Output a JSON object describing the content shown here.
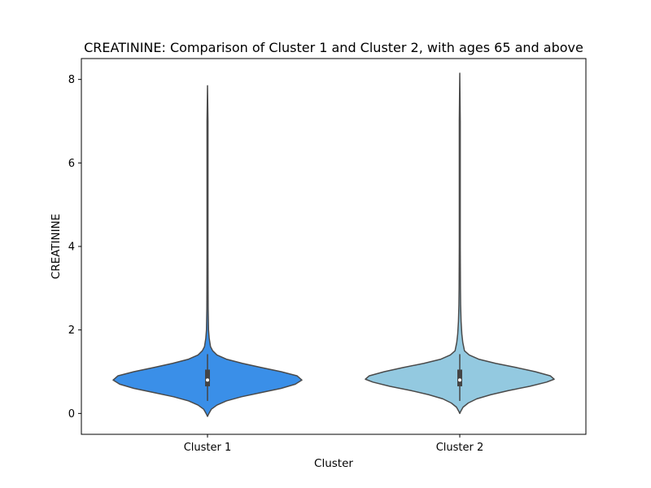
{
  "chart_data": {
    "type": "violin",
    "title": "CREATININE: Comparison of Cluster 1 and Cluster 2, with ages 65 and above",
    "xlabel": "Cluster",
    "ylabel": "CREATININE",
    "ylim": [
      -0.5,
      8.5
    ],
    "yticks": [
      0,
      2,
      4,
      6,
      8
    ],
    "categories": [
      "Cluster 1",
      "Cluster 2"
    ],
    "grid": false,
    "legend": "none",
    "series": [
      {
        "category": "Cluster 1",
        "color": "#3a8fe8",
        "range": [
          -0.07,
          7.85
        ],
        "median": 0.8,
        "q1": 0.65,
        "q3": 1.05,
        "whisker_low": 0.3,
        "whisker_high": 1.42,
        "density": [
          [
            -0.07,
            0.0
          ],
          [
            0.0,
            0.015
          ],
          [
            0.1,
            0.04
          ],
          [
            0.2,
            0.1
          ],
          [
            0.3,
            0.2
          ],
          [
            0.4,
            0.36
          ],
          [
            0.5,
            0.57
          ],
          [
            0.6,
            0.78
          ],
          [
            0.7,
            0.93
          ],
          [
            0.8,
            1.0
          ],
          [
            0.9,
            0.95
          ],
          [
            1.0,
            0.78
          ],
          [
            1.1,
            0.57
          ],
          [
            1.2,
            0.37
          ],
          [
            1.3,
            0.2
          ],
          [
            1.4,
            0.1
          ],
          [
            1.5,
            0.055
          ],
          [
            1.6,
            0.032
          ],
          [
            1.8,
            0.018
          ],
          [
            2.0,
            0.011
          ],
          [
            2.5,
            0.007
          ],
          [
            3.0,
            0.006
          ],
          [
            4.0,
            0.005
          ],
          [
            5.0,
            0.005
          ],
          [
            6.0,
            0.005
          ],
          [
            7.0,
            0.005
          ],
          [
            7.85,
            0.0
          ]
        ]
      },
      {
        "category": "Cluster 2",
        "color": "#93c9e0",
        "range": [
          0.0,
          8.15
        ],
        "median": 0.8,
        "q1": 0.65,
        "q3": 1.05,
        "whisker_low": 0.3,
        "whisker_high": 1.42,
        "density": [
          [
            0.0,
            0.0
          ],
          [
            0.05,
            0.01
          ],
          [
            0.15,
            0.035
          ],
          [
            0.25,
            0.09
          ],
          [
            0.35,
            0.18
          ],
          [
            0.45,
            0.33
          ],
          [
            0.55,
            0.52
          ],
          [
            0.65,
            0.74
          ],
          [
            0.75,
            0.92
          ],
          [
            0.82,
            1.0
          ],
          [
            0.9,
            0.96
          ],
          [
            1.0,
            0.8
          ],
          [
            1.1,
            0.6
          ],
          [
            1.2,
            0.38
          ],
          [
            1.3,
            0.2
          ],
          [
            1.4,
            0.1
          ],
          [
            1.5,
            0.05
          ],
          [
            1.7,
            0.032
          ],
          [
            1.9,
            0.022
          ],
          [
            2.2,
            0.014
          ],
          [
            2.6,
            0.009
          ],
          [
            3.0,
            0.007
          ],
          [
            4.0,
            0.005
          ],
          [
            5.0,
            0.005
          ],
          [
            6.0,
            0.005
          ],
          [
            7.0,
            0.005
          ],
          [
            8.15,
            0.0
          ]
        ]
      }
    ]
  }
}
